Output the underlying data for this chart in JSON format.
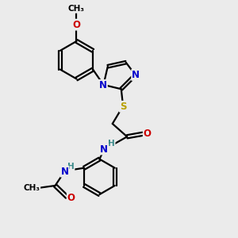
{
  "bg_color": "#ebebeb",
  "bond_color": "#000000",
  "bond_width": 1.6,
  "atom_colors": {
    "C": "#000000",
    "N": "#0000cc",
    "O": "#cc0000",
    "S": "#b8a000",
    "H": "#3a8a8a"
  },
  "font_size_atom": 8.5,
  "font_size_small": 7.5,
  "xlim": [
    0,
    10
  ],
  "ylim": [
    0,
    10
  ]
}
